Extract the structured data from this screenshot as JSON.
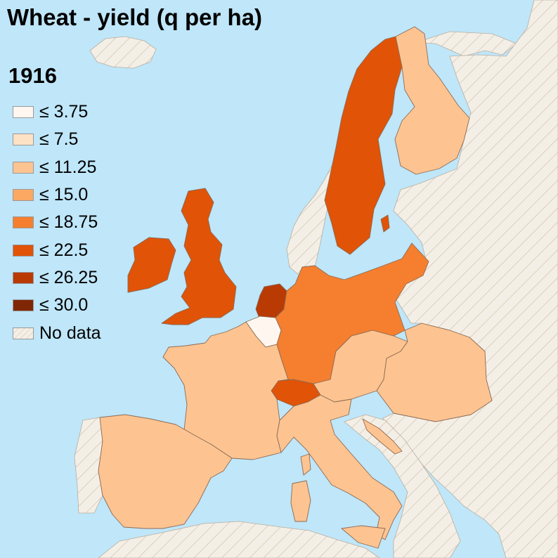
{
  "title": "Wheat - yield (q per ha)",
  "year": "1916",
  "colors": {
    "sea": "#bfe6f9",
    "no_data_fill": "#f4efe6",
    "no_data_hatch": "#d9cfbf",
    "border": "#8c6a55"
  },
  "legend": [
    {
      "label": "≤ 3.75",
      "color": "#fff7ef"
    },
    {
      "label": "≤ 7.5",
      "color": "#fee2c6"
    },
    {
      "label": "≤ 11.25",
      "color": "#fdc491"
    },
    {
      "label": "≤ 15.0",
      "color": "#fca862"
    },
    {
      "label": "≤ 18.75",
      "color": "#f57f2e"
    },
    {
      "label": "≤ 22.5",
      "color": "#e15307"
    },
    {
      "label": "≤ 26.25",
      "color": "#b93a03"
    },
    {
      "label": "≤ 30.0",
      "color": "#7f2704"
    },
    {
      "label": "No data",
      "color": "nodata"
    }
  ],
  "countries": [
    {
      "name": "Sweden",
      "class": "≤ 22.5"
    },
    {
      "name": "Finland",
      "class": "≤ 11.25"
    },
    {
      "name": "United Kingdom",
      "class": "≤ 22.5"
    },
    {
      "name": "Ireland",
      "class": "≤ 22.5"
    },
    {
      "name": "Netherlands",
      "class": "≤ 26.25"
    },
    {
      "name": "Belgium",
      "class": "≤ 3.75"
    },
    {
      "name": "Germany",
      "class": "≤ 18.75"
    },
    {
      "name": "Switzerland",
      "class": "≤ 22.5"
    },
    {
      "name": "France",
      "class": "≤ 11.25"
    },
    {
      "name": "Spain",
      "class": "≤ 11.25"
    },
    {
      "name": "Austria",
      "class": "≤ 11.25"
    },
    {
      "name": "Hungary",
      "class": "≤ 11.25"
    },
    {
      "name": "Italy",
      "class": "≤ 11.25"
    }
  ]
}
